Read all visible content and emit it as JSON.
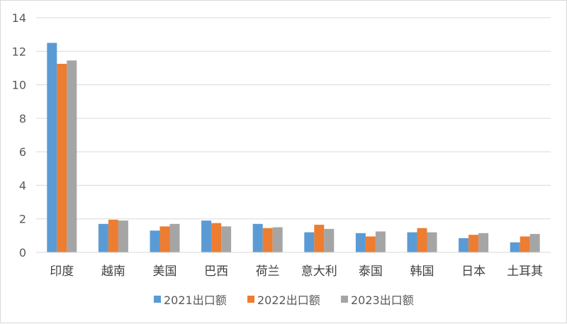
{
  "chart_data": {
    "type": "bar",
    "title": "",
    "xlabel": "",
    "ylabel": "",
    "ylim": [
      0,
      14
    ],
    "yticks": [
      0,
      2,
      4,
      6,
      8,
      10,
      12,
      14
    ],
    "grid": true,
    "legend_position": "bottom",
    "categories": [
      "印度",
      "越南",
      "美国",
      "巴西",
      "荷兰",
      "意大利",
      "泰国",
      "韩国",
      "日本",
      "土耳其"
    ],
    "series": [
      {
        "name": "2021出口额",
        "color": "#5b9bd5",
        "values": [
          12.5,
          1.7,
          1.3,
          1.9,
          1.7,
          1.2,
          1.15,
          1.2,
          0.85,
          0.6
        ]
      },
      {
        "name": "2022出口额",
        "color": "#ed7d31",
        "values": [
          11.25,
          1.95,
          1.55,
          1.75,
          1.45,
          1.65,
          0.95,
          1.45,
          1.05,
          0.95
        ]
      },
      {
        "name": "2023出口额",
        "color": "#a5a5a5",
        "values": [
          11.45,
          1.9,
          1.7,
          1.55,
          1.5,
          1.4,
          1.25,
          1.2,
          1.15,
          1.1
        ]
      }
    ]
  }
}
